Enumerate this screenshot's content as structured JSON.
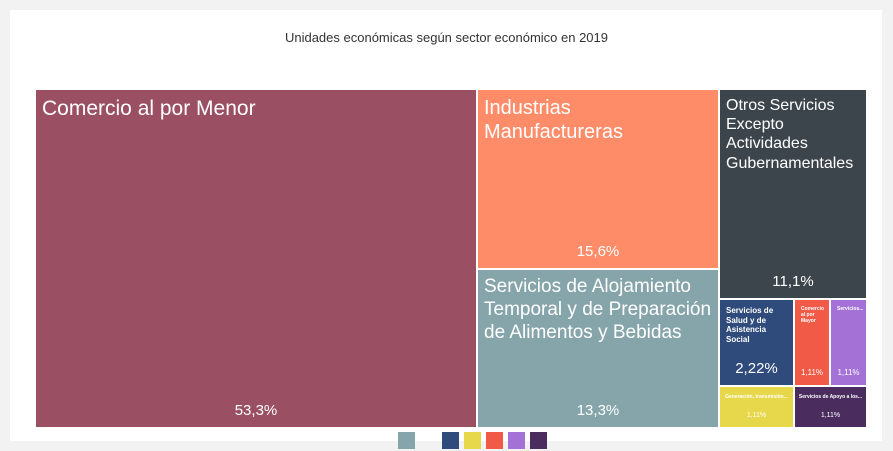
{
  "chart_data": {
    "type": "treemap",
    "title": "Unidades económicas según sector económico en 2019",
    "categories": [
      "Comercio al por Menor",
      "Industrias Manufactureras",
      "Servicios de Alojamiento Temporal y de Preparación de Alimentos y Bebidas",
      "Otros Servicios Excepto Actividades Gubernamentales",
      "Servicios de Salud y de Asistencia Social",
      "Comercio al por Mayor",
      "Servicios...",
      "Generación, transmisión...",
      "Servicios de Apoyo a los..."
    ],
    "values": [
      53.3,
      15.6,
      13.3,
      11.1,
      2.22,
      1.11,
      1.11,
      1.11,
      1.11
    ],
    "value_labels": [
      "53,3%",
      "15,6%",
      "13,3%",
      "11,1%",
      "2,22%",
      "1,11%",
      "1,11%",
      "1,11%",
      "1,11%"
    ],
    "colors": [
      "#9b4f63",
      "#ff8c69",
      "#86a5ab",
      "#3d454c",
      "#2f4b7c",
      "#f05a47",
      "#a471d6",
      "#e6d84a",
      "#4a2d5e"
    ]
  }
}
